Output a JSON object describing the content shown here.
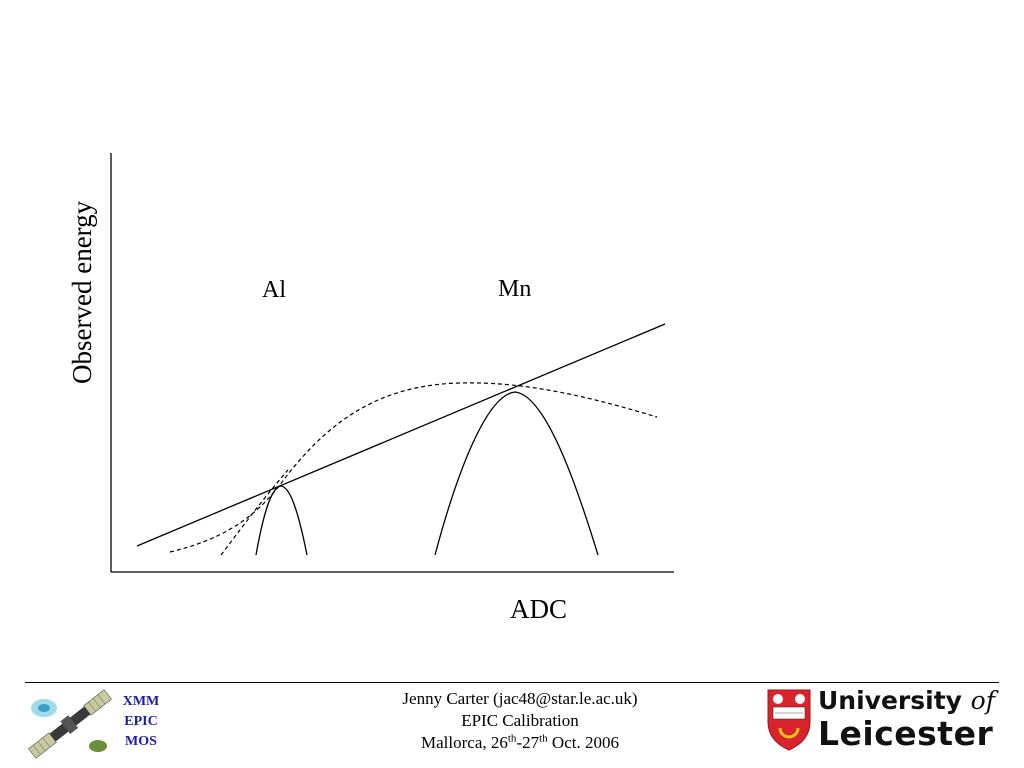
{
  "diagram": {
    "x_axis_label": "ADC",
    "y_axis_label": "Observed energy",
    "peak_labels": [
      "Al",
      "Mn"
    ]
  },
  "footer": {
    "left_logo_lines": [
      "XMM",
      "EPIC",
      "MOS"
    ],
    "presenter": "Jenny Carter (jac48@star.le.ac.uk)",
    "event": "EPIC Calibration",
    "location_prefix": "Mallorca, 26",
    "date_sup1": "th",
    "date_sep": "-27",
    "date_sup2": "th",
    "date_suffix": " Oct. 2006",
    "university_line1": "University ",
    "university_of": "of",
    "university_line2": "Leicester"
  },
  "colors": {
    "logo_text": "#1c1caa",
    "shield_red": "#d9232d"
  }
}
